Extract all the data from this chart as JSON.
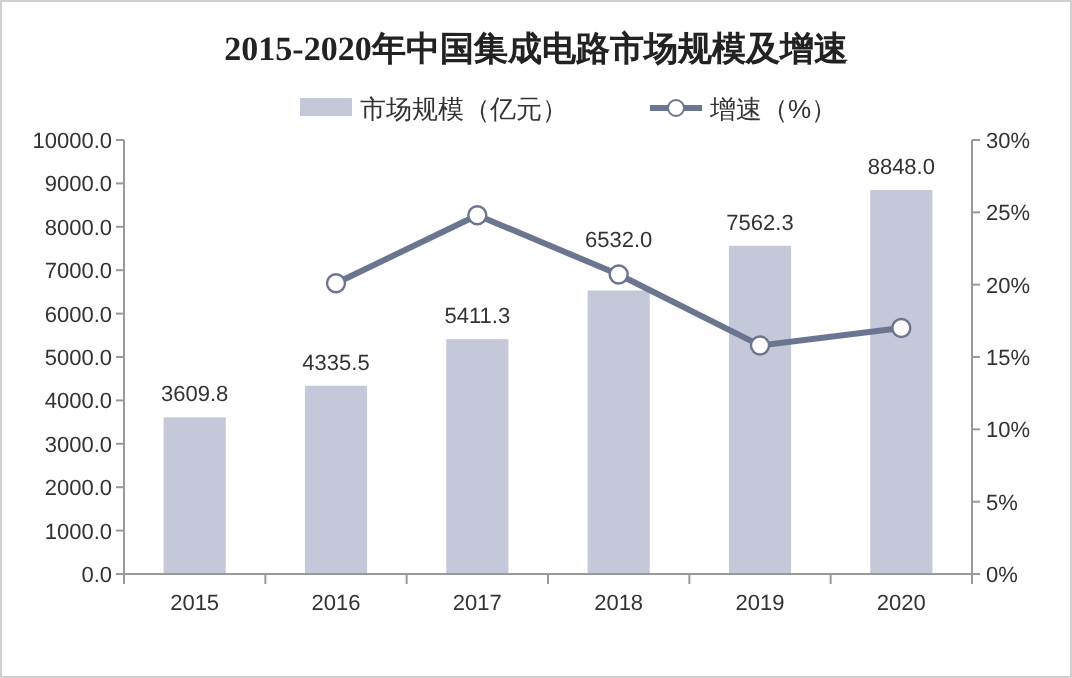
{
  "chart_data": {
    "type": "bar",
    "title": "2015-2020年中国集成电路市场规模及增速",
    "categories": [
      "2015",
      "2016",
      "2017",
      "2018",
      "2019",
      "2020"
    ],
    "series": [
      {
        "name": "市场规模（亿元）",
        "color": "#c5c8d9",
        "values": [
          3609.8,
          4335.5,
          5411.3,
          6532.0,
          7562.3,
          8848.0
        ],
        "value_labels": [
          "3609.8",
          "4335.5",
          "5411.3",
          "6532.0",
          "7562.3",
          "8848.0"
        ]
      },
      {
        "name": "增速（%）",
        "type": "line",
        "axis": "y2",
        "color": "#6b7590",
        "values": [
          null,
          20.1,
          24.8,
          20.7,
          15.8,
          17.0
        ]
      }
    ],
    "ylim": [
      0,
      10000
    ],
    "yticks": [
      {
        "value": 0,
        "label": "0.0"
      },
      {
        "value": 1000,
        "label": "1000.0"
      },
      {
        "value": 2000,
        "label": "2000.0"
      },
      {
        "value": 3000,
        "label": "3000.0"
      },
      {
        "value": 4000,
        "label": "4000.0"
      },
      {
        "value": 5000,
        "label": "5000.0"
      },
      {
        "value": 6000,
        "label": "6000.0"
      },
      {
        "value": 7000,
        "label": "7000.0"
      },
      {
        "value": 8000,
        "label": "8000.0"
      },
      {
        "value": 9000,
        "label": "9000.0"
      },
      {
        "value": 10000,
        "label": "10000.0"
      }
    ],
    "y2lim": [
      0,
      30
    ],
    "y2ticks": [
      {
        "value": 0,
        "label": "0%"
      },
      {
        "value": 5,
        "label": "5%"
      },
      {
        "value": 10,
        "label": "10%"
      },
      {
        "value": 15,
        "label": "15%"
      },
      {
        "value": 20,
        "label": "20%"
      },
      {
        "value": 25,
        "label": "25%"
      },
      {
        "value": 30,
        "label": "30%"
      }
    ],
    "legend": "top",
    "marker": "circle",
    "grid": false
  }
}
